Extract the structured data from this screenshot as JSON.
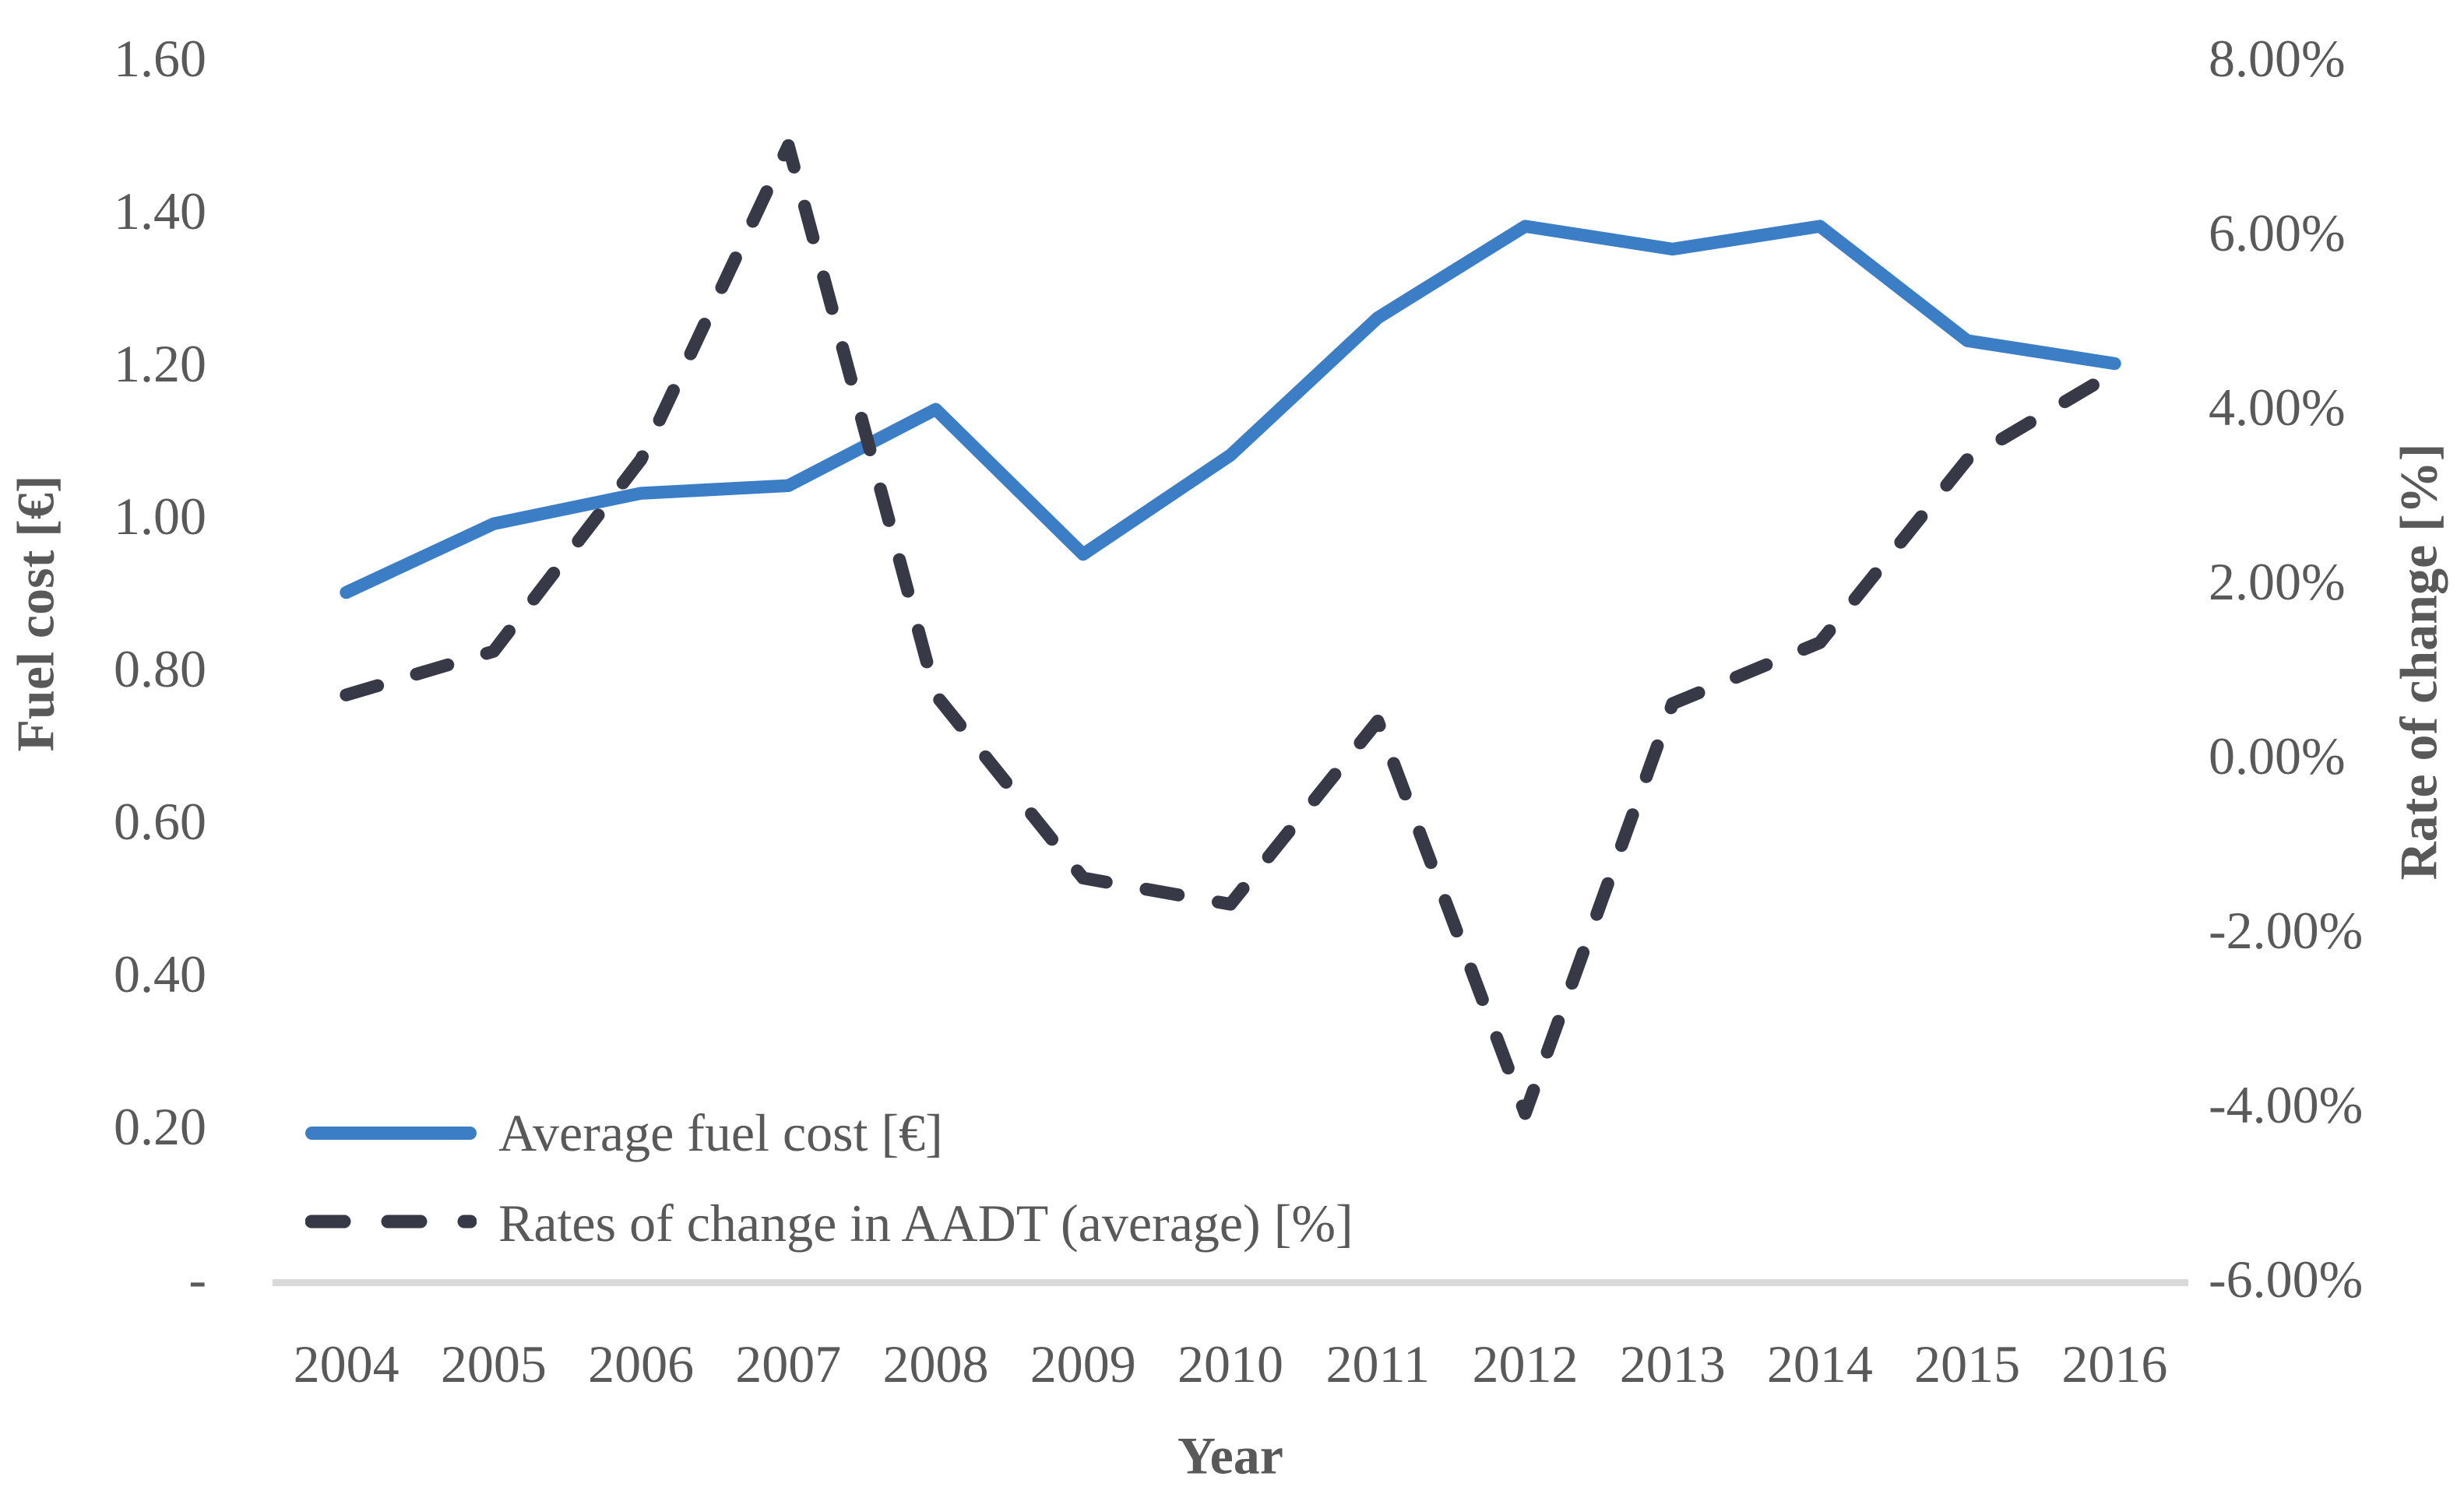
{
  "chart_data": {
    "type": "line",
    "title": "",
    "xlabel": "Year",
    "categories": [
      "2004",
      "2005",
      "2006",
      "2007",
      "2008",
      "2009",
      "2010",
      "2011",
      "2012",
      "2013",
      "2014",
      "2015",
      "2016"
    ],
    "series": [
      {
        "name": "Average fuel cost [€]",
        "axis": "left",
        "line_style": "solid",
        "color": "#3B7EC5",
        "values": [
          0.9,
          0.99,
          1.03,
          1.04,
          1.14,
          0.95,
          1.08,
          1.26,
          1.38,
          1.35,
          1.38,
          1.23,
          1.2
        ]
      },
      {
        "name": "Rates of change in AADT (average) [%]",
        "axis": "right",
        "line_style": "dashed",
        "color": "#373947",
        "values": [
          0.7,
          1.2,
          3.4,
          7.0,
          0.7,
          -1.4,
          -1.7,
          0.4,
          -4.1,
          0.6,
          1.3,
          3.4,
          4.4
        ]
      }
    ],
    "left_axis": {
      "label": "Fuel cost [€]",
      "min": 0,
      "max": 1.6,
      "step": 0.2,
      "tick_labels": [
        "1.60",
        "1.40",
        "1.20",
        "1.00",
        "0.80",
        "0.60",
        "0.40",
        "0.20",
        "-"
      ]
    },
    "right_axis": {
      "label": "Rate of change [%]",
      "min": -6,
      "max": 8,
      "step": 2,
      "tick_labels": [
        "8.00%",
        "6.00%",
        "4.00%",
        "2.00%",
        "0.00%",
        "-2.00%",
        "-4.00%",
        "-6.00%"
      ]
    },
    "grid": false,
    "legend_position": "inside-bottom-left",
    "colors": {
      "tick_text": "#595959",
      "axis_title_text": "#595959",
      "axis_line": "#D9D9D9",
      "background": "#FFFFFF"
    }
  }
}
